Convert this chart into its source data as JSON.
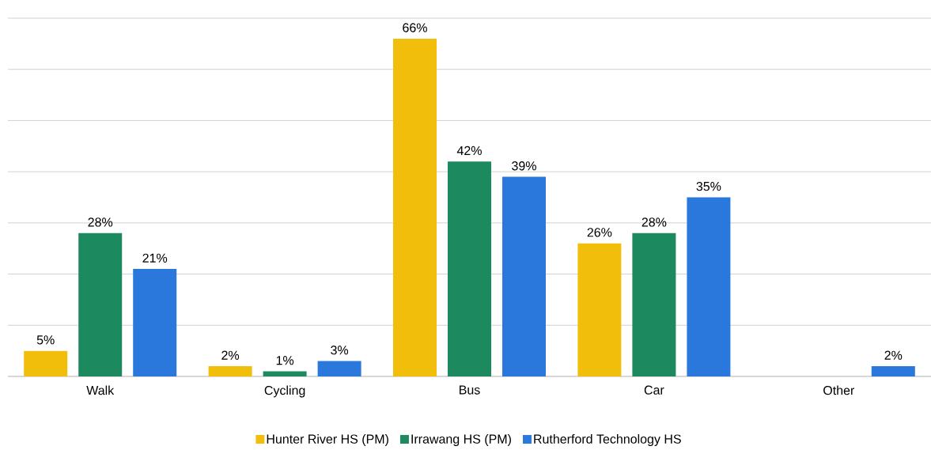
{
  "chart_data": {
    "type": "bar",
    "categories": [
      "Walk",
      "Cycling",
      "Bus",
      "Car",
      "Other"
    ],
    "series": [
      {
        "name": "Hunter River HS (PM)",
        "color": "#f2be0c",
        "values": [
          5,
          2,
          66,
          26,
          null
        ],
        "value_labels": [
          "5%",
          "2%",
          "66%",
          "26%",
          null
        ]
      },
      {
        "name": "Irrawang HS (PM)",
        "color": "#1c8a5e",
        "values": [
          28,
          1,
          42,
          28,
          null
        ],
        "value_labels": [
          "28%",
          "1%",
          "42%",
          "28%",
          null
        ]
      },
      {
        "name": "Rutherford Technology HS",
        "color": "#2b78dc",
        "values": [
          21,
          3,
          39,
          35,
          2
        ],
        "value_labels": [
          "21%",
          "3%",
          "39%",
          "35%",
          "2%"
        ]
      }
    ],
    "ylim": [
      0,
      70
    ],
    "yticks": [
      {
        "value": 0,
        "label": null
      },
      {
        "value": 10,
        "label": null
      },
      {
        "value": 20,
        "label": null
      },
      {
        "value": 30,
        "label": null
      },
      {
        "value": 40,
        "label": null
      },
      {
        "value": 50,
        "label": null
      },
      {
        "value": 60,
        "label": null
      },
      {
        "value": 70,
        "label": null
      }
    ],
    "grid": "y",
    "legend": "bottom"
  }
}
